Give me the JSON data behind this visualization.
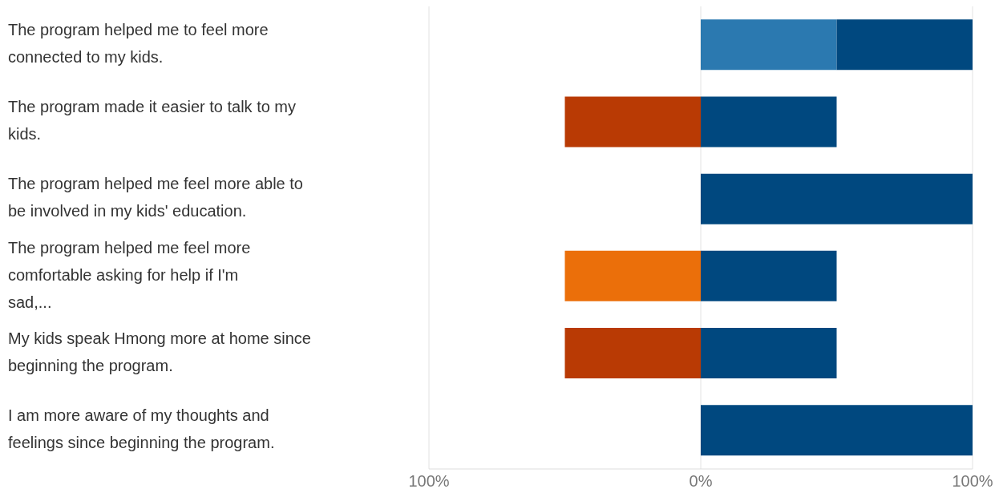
{
  "chart_data": {
    "type": "bar",
    "orientation": "horizontal",
    "stacked": true,
    "categories": [
      "The program helped me to feel more connected to my kids.",
      "The program made it easier to talk to my kids.",
      "The program helped me feel more able to be involved in my kids' education.",
      "The program helped me feel more comfortable asking for help if I'm sad,...",
      "My kids speak Hmong more at home since beginning the program.",
      "I am more aware of my thoughts and feelings since beginning the program."
    ],
    "series": [
      {
        "color": "#2b79b0",
        "values": [
          50,
          null,
          null,
          null,
          null,
          null
        ]
      },
      {
        "color": "#00487f",
        "values": [
          50,
          50,
          100,
          50,
          50,
          100
        ]
      },
      {
        "color": "#eb6f0a",
        "values": [
          null,
          null,
          null,
          -50,
          null,
          null
        ]
      },
      {
        "color": "#b93a04",
        "values": [
          null,
          -50,
          null,
          null,
          -50,
          null
        ]
      }
    ],
    "xlim": [
      -100,
      100
    ],
    "xticks": [
      {
        "value": -100,
        "label": "100%"
      },
      {
        "value": 0,
        "label": "0%"
      },
      {
        "value": 100,
        "label": "100%"
      }
    ],
    "grid": "x"
  }
}
